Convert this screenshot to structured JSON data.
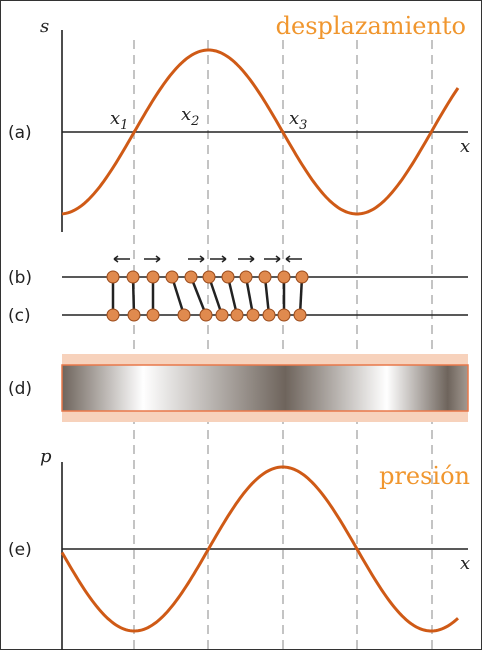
{
  "labels": {
    "displacement": "desplazamiento",
    "pressure": "presión",
    "s_axis": "s",
    "p_axis": "p",
    "x_axis_top": "x",
    "x_axis_bottom": "x",
    "row_a": "(a)",
    "row_b": "(b)",
    "row_c": "(c)",
    "row_d": "(d)",
    "row_e": "(e)"
  },
  "positions": [
    {
      "main": "x",
      "sub": "1"
    },
    {
      "main": "x",
      "sub": "2"
    },
    {
      "main": "x",
      "sub": "3"
    }
  ]
}
